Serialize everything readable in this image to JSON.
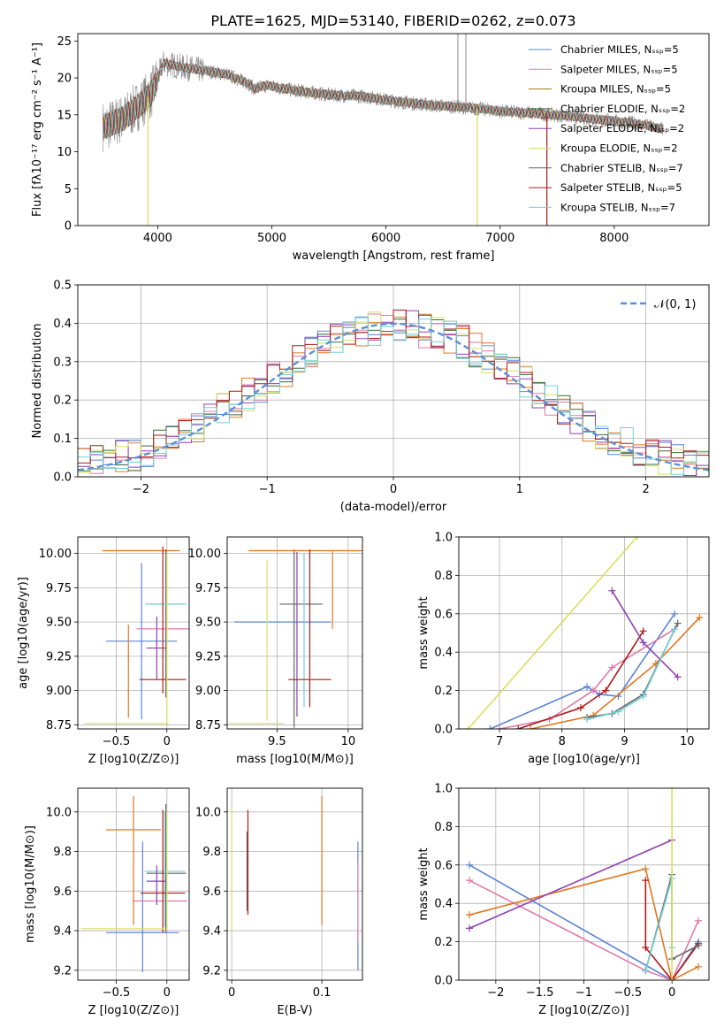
{
  "title": "PLATE=1625, MJD=53140, FIBERID=0262, z=0.073",
  "colors": {
    "chab_miles": "#5b84d8",
    "salp_miles": "#e07aa8",
    "krou_miles": "#a07818",
    "chab_elodie": "#3a6a3a",
    "salp_elodie": "#9040b0",
    "krou_elodie": "#d8e060",
    "chab_stelib": "#666666",
    "salp_stelib": "#b01818",
    "krou_stelib": "#70d0d8",
    "orange": "#e07820",
    "gray_data": "#888888",
    "norm": "#5b8fd8"
  },
  "chart_data": [
    {
      "id": "spectrum",
      "type": "line",
      "xlabel": "wavelength [Angstrom, rest frame]",
      "ylabel": "Flux [fλ10⁻¹⁷ erg cm⁻² s⁻¹ A⁻¹]",
      "xlim": [
        3300,
        8830
      ],
      "ylim": [
        0,
        26
      ],
      "xticks": [
        4000,
        5000,
        6000,
        7000,
        8000
      ],
      "yticks": [
        0,
        5,
        10,
        15,
        20,
        25
      ],
      "legend_position": "right",
      "legend": [
        {
          "label": "Chabrier MILES, N_SSP=5",
          "color_key": "chab_miles"
        },
        {
          "label": "Salpeter MILES, N_SSP=5",
          "color_key": "salp_miles"
        },
        {
          "label": "Kroupa MILES, N_SSP=5",
          "color_key": "krou_miles"
        },
        {
          "label": "Chabrier ELODIE, N_SSP=2",
          "color_key": "chab_elodie"
        },
        {
          "label": "Salpeter ELODIE, N_SSP=2",
          "color_key": "salp_elodie"
        },
        {
          "label": "Kroupa ELODIE, N_SSP=2",
          "color_key": "krou_elodie"
        },
        {
          "label": "Chabrier STELIB, N_SSP=7",
          "color_key": "chab_stelib"
        },
        {
          "label": "Salpeter STELIB, N_SSP=5",
          "color_key": "salp_stelib"
        },
        {
          "label": "Kroupa STELIB, N_SSP=7",
          "color_key": "krou_stelib"
        }
      ],
      "continuum": {
        "x": [
          3550,
          3700,
          3850,
          3950,
          4050,
          4200,
          4400,
          4600,
          4800,
          4850,
          4950,
          5200,
          5500,
          5800,
          6100,
          6400,
          6700,
          7000,
          7300,
          7600,
          7900,
          8200,
          8450
        ],
        "y": [
          13.5,
          14.5,
          16.5,
          18,
          22,
          21.5,
          21,
          20.5,
          19.2,
          18.5,
          19,
          18.3,
          17.7,
          17.5,
          16.8,
          16.3,
          16,
          15.5,
          15.2,
          14.8,
          14.3,
          13.8,
          13
        ]
      },
      "data_spikes": [
        {
          "x": 6630,
          "y": 26
        },
        {
          "x": 6700,
          "y": 26
        }
      ],
      "model_dips": [
        {
          "x": 3915,
          "y": 0,
          "color_key": "krou_elodie"
        },
        {
          "x": 6800,
          "y": 0,
          "color_key": "krou_elodie"
        },
        {
          "x": 7410,
          "y": 0,
          "color_key": "salp_stelib"
        }
      ]
    },
    {
      "id": "residuals",
      "type": "area",
      "xlabel": "(data-model)/error",
      "ylabel": "Normed distribution",
      "xlim": [
        -2.5,
        2.5
      ],
      "ylim": [
        0,
        0.5
      ],
      "xticks": [
        -2,
        -1,
        0,
        1,
        2
      ],
      "yticks": [
        0.0,
        0.1,
        0.2,
        0.3,
        0.4,
        0.5
      ],
      "grid": true,
      "legend_position": "upper right",
      "legend": [
        {
          "label": "𝒩(0, 1)",
          "style": "dashed"
        }
      ],
      "normal": {
        "mean": 0,
        "sigma": 1
      },
      "bin_width": 0.1,
      "histogram_profile": {
        "x": [
          -2.5,
          -2.0,
          -1.5,
          -1.0,
          -0.5,
          0,
          0.5,
          1.0,
          1.5,
          2.0,
          2.5
        ],
        "y": [
          0.03,
          0.06,
          0.14,
          0.25,
          0.35,
          0.4,
          0.36,
          0.26,
          0.14,
          0.06,
          0.03
        ]
      }
    },
    {
      "id": "age_vs_Z",
      "type": "scatter",
      "xlabel": "Z [log10(Z/Z⊙)]",
      "ylabel": "age [log10(age/yr)]",
      "xlim": [
        -0.88,
        0.22
      ],
      "ylim": [
        8.72,
        10.12
      ],
      "xticks": [
        -0.5,
        0.0
      ],
      "yticks": [
        8.75,
        9.0,
        9.25,
        9.5,
        9.75,
        10.0
      ],
      "grid": true,
      "errorbars": [
        {
          "x": -0.25,
          "y": 9.36,
          "xerr": [
            0.35,
            0.35
          ],
          "yerr": [
            0.57,
            0.57
          ],
          "color_key": "chab_miles"
        },
        {
          "x": -0.04,
          "y": 9.45,
          "xerr": [
            0.26,
            0.26
          ],
          "yerr": [
            0,
            0
          ],
          "color_key": "salp_miles"
        },
        {
          "x": -0.38,
          "y": 9.45,
          "xerr": [
            0,
            0
          ],
          "yerr": [
            0.65,
            0.03
          ],
          "color_key": "orange"
        },
        {
          "x": -0.32,
          "y": 10.02,
          "xerr": [
            0.32,
            0.45
          ],
          "yerr": [
            0,
            0
          ],
          "color_key": "orange"
        },
        {
          "x": -0.01,
          "y": 9.63,
          "xerr": [
            0.2,
            0.2
          ],
          "yerr": [
            0.68,
            0.4
          ],
          "color_key": "chab_stelib"
        },
        {
          "x": -0.01,
          "y": 9.63,
          "xerr": [
            0.2,
            0.2
          ],
          "yerr": [
            0,
            0
          ],
          "color_key": "krou_stelib"
        },
        {
          "x": -0.1,
          "y": 9.31,
          "xerr": [
            0.1,
            0.1
          ],
          "yerr": [
            0.23,
            0.23
          ],
          "color_key": "salp_elodie"
        },
        {
          "x": -0.04,
          "y": 9.08,
          "xerr": [
            0.23,
            0.23
          ],
          "yerr": [
            0.1,
            0.97
          ],
          "color_key": "salp_stelib"
        },
        {
          "x": -0.4,
          "y": 8.76,
          "xerr": [
            0.42,
            0.42
          ],
          "yerr": [
            0,
            0
          ],
          "color_key": "krou_elodie"
        },
        {
          "x": 0.0,
          "y": 9.4,
          "xerr": [
            0,
            0
          ],
          "yerr": [
            0.65,
            0.6
          ],
          "color_key": "krou_elodie"
        }
      ]
    },
    {
      "id": "age_vs_mass",
      "type": "scatter",
      "xlabel": "mass [log10(M/M⊙)]",
      "ylabel": "",
      "xlim": [
        9.15,
        10.1
      ],
      "ylim": [
        8.72,
        10.12
      ],
      "xticks": [
        9.5,
        10.0
      ],
      "yticks": [
        8.75,
        9.0,
        9.25,
        9.5,
        9.75,
        10.0
      ],
      "grid": true,
      "errorbars": [
        {
          "x": 9.58,
          "y": 9.5,
          "xerr": [
            0.38,
            0.3
          ],
          "yerr": [
            0,
            0
          ],
          "color_key": "chab_miles"
        },
        {
          "x": 9.62,
          "y": 9.63,
          "xerr": [
            0.1,
            0.2
          ],
          "yerr": [
            0.9,
            0.4
          ],
          "color_key": "chab_stelib"
        },
        {
          "x": 9.69,
          "y": 9.5,
          "xerr": [
            0,
            0
          ],
          "yerr": [
            0.62,
            0.5
          ],
          "color_key": "krou_stelib"
        },
        {
          "x": 9.7,
          "y": 10.02,
          "xerr": [
            0.4,
            0.4
          ],
          "yerr": [
            0,
            0
          ],
          "color_key": "orange"
        },
        {
          "x": 9.89,
          "y": 9.45,
          "xerr": [
            0,
            0
          ],
          "yerr": [
            0.0,
            0.57
          ],
          "color_key": "orange"
        },
        {
          "x": 9.43,
          "y": 9.4,
          "xerr": [
            0,
            0
          ],
          "yerr": [
            0.62,
            0.55
          ],
          "color_key": "krou_elodie"
        },
        {
          "x": 9.35,
          "y": 8.76,
          "xerr": [
            0.2,
            0.2
          ],
          "yerr": [
            0,
            0
          ],
          "color_key": "krou_elodie"
        },
        {
          "x": 9.64,
          "y": 9.31,
          "xerr": [
            0,
            0
          ],
          "yerr": [
            0.5,
            0.7
          ],
          "color_key": "salp_elodie"
        },
        {
          "x": 9.73,
          "y": 9.08,
          "xerr": [
            0.15,
            0.15
          ],
          "yerr": [
            0.2,
            0.95
          ],
          "color_key": "salp_stelib"
        }
      ]
    },
    {
      "id": "massweight_vs_age",
      "type": "line",
      "xlabel": "age [log10(age/yr)]",
      "ylabel": "mass weight",
      "xlim": [
        6.35,
        10.35
      ],
      "ylim": [
        0,
        1
      ],
      "xticks": [
        7,
        8,
        9,
        10
      ],
      "yticks": [
        0.0,
        0.2,
        0.4,
        0.6,
        0.8,
        1.0
      ],
      "grid": true,
      "series": [
        {
          "color_key": "krou_elodie",
          "x": [
            6.5,
            9.2
          ],
          "y": [
            0.0,
            1.0
          ]
        },
        {
          "color_key": "chab_miles",
          "x": [
            6.85,
            8.4,
            8.6,
            8.9,
            9.8
          ],
          "y": [
            0.0,
            0.22,
            0.18,
            0.17,
            0.6
          ]
        },
        {
          "color_key": "salp_miles",
          "x": [
            7.0,
            7.8,
            8.5,
            8.8,
            9.8
          ],
          "y": [
            0.0,
            0.05,
            0.2,
            0.32,
            0.52
          ]
        },
        {
          "color_key": "orange",
          "x": [
            7.5,
            8.5,
            9.5,
            10.2
          ],
          "y": [
            0.0,
            0.07,
            0.34,
            0.58
          ]
        },
        {
          "color_key": "salp_stelib",
          "x": [
            7.3,
            8.3,
            8.7,
            9.3
          ],
          "y": [
            0.0,
            0.11,
            0.2,
            0.51
          ]
        },
        {
          "color_key": "salp_elodie",
          "x": [
            8.8,
            9.3,
            9.85
          ],
          "y": [
            0.72,
            0.45,
            0.27
          ]
        },
        {
          "color_key": "chab_stelib",
          "x": [
            8.4,
            8.8,
            9.3,
            9.85
          ],
          "y": [
            0.06,
            0.08,
            0.18,
            0.55
          ]
        },
        {
          "color_key": "krou_stelib",
          "x": [
            8.4,
            8.9,
            9.3,
            9.8
          ],
          "y": [
            0.05,
            0.09,
            0.17,
            0.52
          ]
        }
      ]
    },
    {
      "id": "mass_vs_Z",
      "type": "scatter",
      "xlabel": "Z [log10(Z/Z⊙)]",
      "ylabel": "mass [log10(M/M⊙)]",
      "xlim": [
        -0.88,
        0.22
      ],
      "ylim": [
        9.15,
        10.12
      ],
      "xticks": [
        -0.5,
        0.0
      ],
      "yticks": [
        9.2,
        9.4,
        9.6,
        9.8,
        10.0
      ],
      "grid": true,
      "errorbars": [
        {
          "x": -0.24,
          "y": 9.39,
          "xerr": [
            0.36,
            0.36
          ],
          "yerr": [
            0.2,
            0.46
          ],
          "color_key": "chab_miles"
        },
        {
          "x": -0.1,
          "y": 9.55,
          "xerr": [
            0.24,
            0.3
          ],
          "yerr": [
            0,
            0
          ],
          "color_key": "salp_miles"
        },
        {
          "x": -0.33,
          "y": 9.91,
          "xerr": [
            0.27,
            0.27
          ],
          "yerr": [
            0.48,
            0.17
          ],
          "color_key": "orange"
        },
        {
          "x": -0.01,
          "y": 9.69,
          "xerr": [
            0.19,
            0.2
          ],
          "yerr": [
            0.3,
            0.35
          ],
          "color_key": "chab_stelib"
        },
        {
          "x": -0.02,
          "y": 9.7,
          "xerr": [
            0.2,
            0.2
          ],
          "yerr": [
            0.28,
            0.3
          ],
          "color_key": "krou_stelib"
        },
        {
          "x": -0.1,
          "y": 9.65,
          "xerr": [
            0.1,
            0.1
          ],
          "yerr": [
            0.12,
            0.08
          ],
          "color_key": "salp_elodie"
        },
        {
          "x": -0.04,
          "y": 9.59,
          "xerr": [
            0.22,
            0.22
          ],
          "yerr": [
            0.2,
            0.42
          ],
          "color_key": "salp_stelib"
        },
        {
          "x": -0.43,
          "y": 9.41,
          "xerr": [
            0.42,
            0.42
          ],
          "yerr": [
            0,
            0
          ],
          "color_key": "krou_elodie"
        },
        {
          "x": 0.0,
          "y": 9.4,
          "xerr": [
            0,
            0
          ],
          "yerr": [
            0.0,
            0.6
          ],
          "color_key": "krou_elodie"
        }
      ]
    },
    {
      "id": "mass_vs_ebv",
      "type": "scatter",
      "xlabel": "E(B-V)",
      "ylabel": "",
      "xlim": [
        -0.005,
        0.145
      ],
      "ylim": [
        9.15,
        10.12
      ],
      "xticks": [
        0.0,
        0.1
      ],
      "yticks": [
        9.2,
        9.4,
        9.6,
        9.8,
        10.0
      ],
      "grid": true,
      "errorbars": [
        {
          "x": 0.0,
          "y": 9.7,
          "xerr": [
            0,
            0
          ],
          "yerr": [
            0.3,
            0.32
          ],
          "color_key": "krou_elodie"
        },
        {
          "x": 0.018,
          "y": 9.75,
          "xerr": [
            0,
            0
          ],
          "yerr": [
            0.27,
            0.26
          ],
          "color_key": "salp_stelib"
        },
        {
          "x": 0.017,
          "y": 9.7,
          "xerr": [
            0,
            0
          ],
          "yerr": [
            0.2,
            0.2
          ],
          "color_key": "chab_stelib"
        },
        {
          "x": 0.1,
          "y": 9.75,
          "xerr": [
            0,
            0
          ],
          "yerr": [
            0.32,
            0.33
          ],
          "color_key": "orange"
        },
        {
          "x": 0.14,
          "y": 9.5,
          "xerr": [
            0,
            0
          ],
          "yerr": [
            0.3,
            0.35
          ],
          "color_key": "chab_miles"
        },
        {
          "x": 0.14,
          "y": 9.6,
          "xerr": [
            0,
            0
          ],
          "yerr": [
            0.25,
            0.15
          ],
          "color_key": "salp_miles"
        }
      ]
    },
    {
      "id": "massweight_vs_Z",
      "type": "line",
      "xlabel": "Z [log10(Z/Z⊙)]",
      "ylabel": "mass weight",
      "xlim": [
        -2.42,
        0.42
      ],
      "ylim": [
        0,
        1
      ],
      "xticks": [
        -2.0,
        -1.5,
        -1.0,
        -0.5,
        0.0
      ],
      "yticks": [
        0.0,
        0.2,
        0.4,
        0.6,
        0.8,
        1.0
      ],
      "grid": true,
      "series": [
        {
          "color_key": "chab_miles",
          "x": [
            -2.3,
            0.0,
            0.3
          ],
          "y": [
            0.6,
            0.0,
            0.2
          ]
        },
        {
          "color_key": "salp_miles",
          "x": [
            -2.3,
            -0.3,
            0.0,
            0.3
          ],
          "y": [
            0.52,
            0.05,
            0.0,
            0.31
          ]
        },
        {
          "color_key": "orange",
          "x": [
            -2.3,
            -0.3,
            0.0,
            0.3
          ],
          "y": [
            0.34,
            0.58,
            0.0,
            0.07
          ]
        },
        {
          "color_key": "salp_elodie",
          "x": [
            -2.3,
            0.0
          ],
          "y": [
            0.27,
            0.73
          ]
        },
        {
          "color_key": "salp_stelib",
          "x": [
            -0.3,
            -0.3,
            0.0,
            0.3
          ],
          "y": [
            0.52,
            0.17,
            0.0,
            0.19
          ]
        },
        {
          "color_key": "chab_stelib",
          "x": [
            -0.3,
            0.0,
            0.0,
            0.3
          ],
          "y": [
            0.05,
            0.55,
            0.11,
            0.18
          ]
        },
        {
          "color_key": "krou_stelib",
          "x": [
            -0.3,
            0.0,
            0.0
          ],
          "y": [
            0.05,
            0.53,
            0.17
          ]
        },
        {
          "color_key": "krou_elodie",
          "x": [
            0.0,
            0.0
          ],
          "y": [
            0.0,
            1.0
          ]
        }
      ]
    }
  ]
}
